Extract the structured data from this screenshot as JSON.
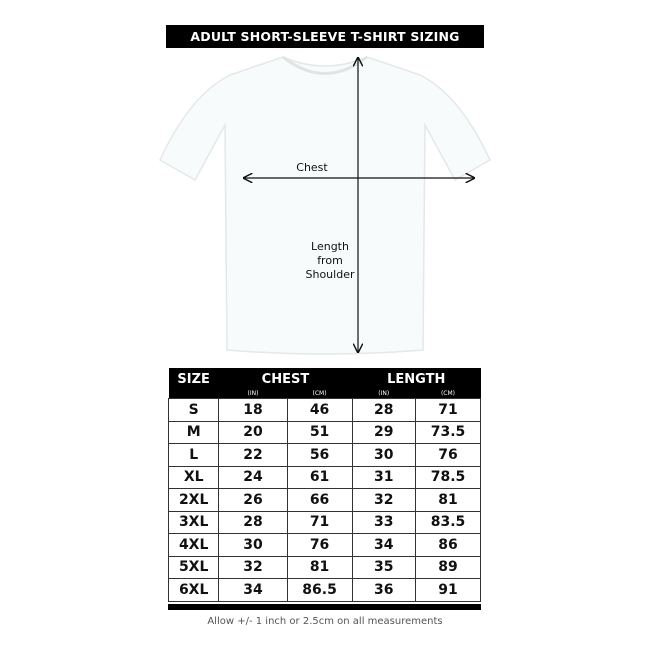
{
  "title": "ADULT SHORT-SLEEVE T-SHIRT SIZING",
  "diagram": {
    "chest_label": "Chest",
    "length_label": "Length from Shoulder",
    "shirt_color": "#f8fbfb"
  },
  "table": {
    "headers": {
      "size": "SIZE",
      "chest": "CHEST",
      "length": "LENGTH",
      "in": "(IN)",
      "cm": "(CM)"
    },
    "rows": [
      [
        "S",
        "18",
        "46",
        "28",
        "71"
      ],
      [
        "M",
        "20",
        "51",
        "29",
        "73.5"
      ],
      [
        "L",
        "22",
        "56",
        "30",
        "76"
      ],
      [
        "XL",
        "24",
        "61",
        "31",
        "78.5"
      ],
      [
        "2XL",
        "26",
        "66",
        "32",
        "81"
      ],
      [
        "3XL",
        "28",
        "71",
        "33",
        "83.5"
      ],
      [
        "4XL",
        "30",
        "76",
        "34",
        "86"
      ],
      [
        "5XL",
        "32",
        "81",
        "35",
        "89"
      ],
      [
        "6XL",
        "34",
        "86.5",
        "36",
        "91"
      ]
    ]
  },
  "note": "Allow +/- 1 inch or 2.5cm on all measurements"
}
